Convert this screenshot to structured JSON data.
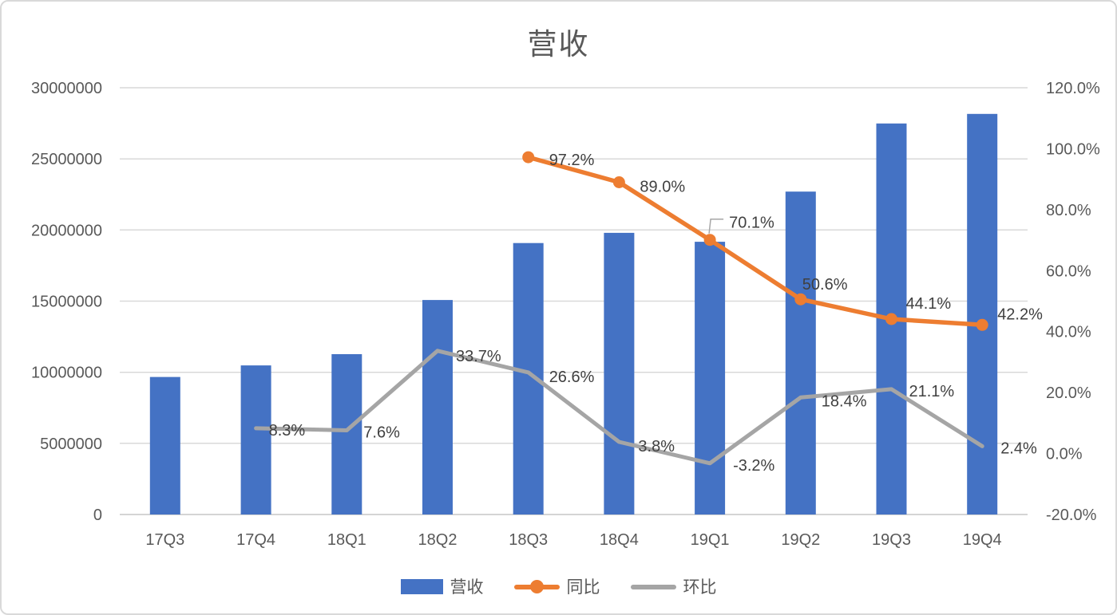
{
  "chart_data": {
    "type": "combo",
    "title": "营收",
    "categories": [
      "17Q3",
      "17Q4",
      "18Q1",
      "18Q2",
      "18Q3",
      "18Q4",
      "19Q1",
      "19Q2",
      "19Q3",
      "19Q4"
    ],
    "series": [
      {
        "name": "营收",
        "type": "bar",
        "axis": "left",
        "color": "#4472C4",
        "values": [
          9670000,
          10480000,
          11270000,
          15080000,
          19080000,
          19800000,
          19170000,
          22700000,
          27490000,
          28160000
        ]
      },
      {
        "name": "同比",
        "type": "line",
        "axis": "right",
        "color": "#ED7D31",
        "marker": "circle",
        "values": [
          null,
          null,
          null,
          null,
          97.2,
          89.0,
          70.1,
          50.6,
          44.1,
          42.2
        ],
        "labels": [
          null,
          null,
          null,
          null,
          "97.2%",
          "89.0%",
          "70.1%",
          "50.6%",
          "44.1%",
          "42.2%"
        ]
      },
      {
        "name": "环比",
        "type": "line",
        "axis": "right",
        "color": "#A5A5A5",
        "marker": "none",
        "values": [
          null,
          8.3,
          7.6,
          33.7,
          26.6,
          3.8,
          -3.2,
          18.4,
          21.1,
          2.4
        ],
        "labels": [
          null,
          "8.3%",
          "7.6%",
          "33.7%",
          "26.6%",
          "3.8%",
          "-3.2%",
          "18.4%",
          "21.1%",
          "2.4%"
        ]
      }
    ],
    "left_axis": {
      "min": 0,
      "max": 30000000,
      "ticks": [
        "0",
        "5000000",
        "10000000",
        "15000000",
        "20000000",
        "25000000",
        "30000000"
      ]
    },
    "right_axis": {
      "min": -20,
      "max": 120,
      "ticks": [
        "-20.0%",
        "0.0%",
        "20.0%",
        "40.0%",
        "60.0%",
        "80.0%",
        "100.0%",
        "120.0%"
      ]
    },
    "grid": true,
    "legend_position": "bottom",
    "colors": {
      "gridline": "#D9D9D9",
      "baseline": "#C6C6C6",
      "axis_text": "#595959",
      "data_label_text": "#404040",
      "callout_line": "#A6A6A6",
      "title_text": "#595959"
    }
  }
}
